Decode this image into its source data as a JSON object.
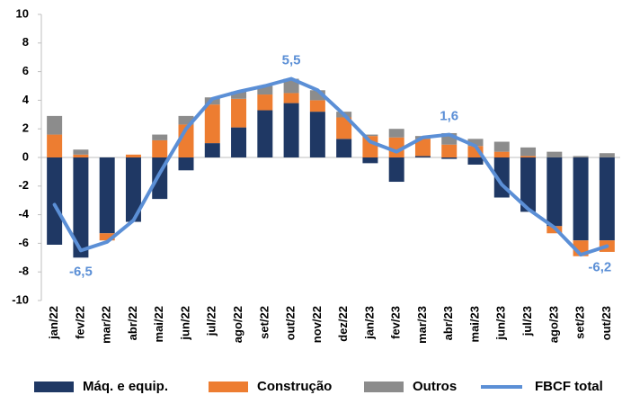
{
  "chart_data": {
    "type": "bar",
    "categories": [
      "jan/22",
      "fev/22",
      "mar/22",
      "abr/22",
      "mai/22",
      "jun/22",
      "jul/22",
      "ago/22",
      "set/22",
      "out/22",
      "nov/22",
      "dez/22",
      "jan/23",
      "fev/23",
      "mar/23",
      "abr/23",
      "mai/23",
      "jun/23",
      "jul/23",
      "ago/23",
      "set/23",
      "out/23"
    ],
    "series": [
      {
        "name": "Máq. e equip.",
        "type": "bar",
        "color": "#1f3864",
        "values": [
          -6.1,
          -7.0,
          -5.3,
          -4.5,
          -2.9,
          -0.9,
          1.0,
          2.1,
          3.3,
          3.8,
          3.2,
          1.3,
          -0.4,
          -1.7,
          0.1,
          -0.1,
          -0.5,
          -2.8,
          -3.8,
          -4.8,
          -5.8,
          -5.8
        ]
      },
      {
        "name": "Construção",
        "type": "bar",
        "color": "#ed7d31",
        "values": [
          1.6,
          0.2,
          -0.5,
          0.2,
          1.2,
          2.3,
          2.7,
          2.0,
          1.1,
          0.7,
          0.8,
          1.5,
          1.5,
          1.4,
          1.2,
          0.9,
          0.8,
          0.4,
          0.1,
          -0.5,
          -1.1,
          -0.8
        ]
      },
      {
        "name": "Outros",
        "type": "bar",
        "color": "#8c8c8c",
        "values": [
          1.3,
          0.35,
          0,
          0,
          0.4,
          0.6,
          0.5,
          0.5,
          0.6,
          1.0,
          0.7,
          0.4,
          0.1,
          0.6,
          0.2,
          0.8,
          0.5,
          0.7,
          0.6,
          0.4,
          0.1,
          0.3
        ]
      },
      {
        "name": "FBCF total",
        "type": "line",
        "color": "#5b8fd6",
        "values": [
          -3.3,
          -6.5,
          -5.9,
          -4.4,
          -1.1,
          2.0,
          4.1,
          4.6,
          5.0,
          5.5,
          4.7,
          3.0,
          1.1,
          0.4,
          1.4,
          1.6,
          0.8,
          -1.9,
          -3.6,
          -4.9,
          -6.8,
          -6.2
        ],
        "value_labels": [
          null,
          "-6,5",
          null,
          null,
          null,
          null,
          null,
          null,
          null,
          "5,5",
          null,
          null,
          null,
          null,
          null,
          "1,6",
          null,
          null,
          null,
          null,
          null,
          "-6,2"
        ]
      }
    ],
    "ylim": [
      -10,
      10
    ],
    "yticks": [
      -10,
      -8,
      -6,
      -4,
      -2,
      0,
      2,
      4,
      6,
      8,
      10
    ],
    "grid": false,
    "legend": "bottom"
  }
}
